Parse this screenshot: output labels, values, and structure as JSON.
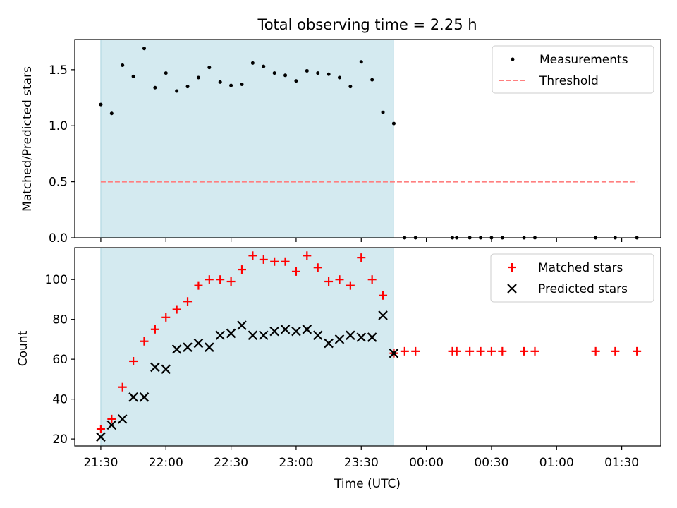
{
  "chart_data": [
    {
      "type": "scatter",
      "title": "Total observing time = 2.25 h",
      "xlabel": "",
      "ylabel": "Matched/Predicted stars",
      "ylim": [
        0,
        1.77
      ],
      "xlim": [
        "21:18",
        "01:48"
      ],
      "yticks": [
        "0.0",
        "0.5",
        "1.0",
        "1.5"
      ],
      "highlight_band": {
        "from": "21:30",
        "to": "23:45",
        "color": "#d4eaf0"
      },
      "legend_position": "top-right",
      "series": [
        {
          "name": "Measurements",
          "marker": "dot",
          "color": "#000000",
          "points": [
            [
              "21:30",
              1.19
            ],
            [
              "21:35",
              1.11
            ],
            [
              "21:40",
              1.54
            ],
            [
              "21:45",
              1.44
            ],
            [
              "21:50",
              1.69
            ],
            [
              "21:55",
              1.34
            ],
            [
              "22:00",
              1.47
            ],
            [
              "22:05",
              1.31
            ],
            [
              "22:10",
              1.35
            ],
            [
              "22:15",
              1.43
            ],
            [
              "22:20",
              1.52
            ],
            [
              "22:25",
              1.39
            ],
            [
              "22:30",
              1.36
            ],
            [
              "22:35",
              1.37
            ],
            [
              "22:40",
              1.56
            ],
            [
              "22:45",
              1.53
            ],
            [
              "22:50",
              1.47
            ],
            [
              "22:55",
              1.45
            ],
            [
              "23:00",
              1.4
            ],
            [
              "23:05",
              1.49
            ],
            [
              "23:10",
              1.47
            ],
            [
              "23:15",
              1.46
            ],
            [
              "23:20",
              1.43
            ],
            [
              "23:25",
              1.35
            ],
            [
              "23:30",
              1.57
            ],
            [
              "23:35",
              1.41
            ],
            [
              "23:40",
              1.12
            ],
            [
              "23:45",
              1.02
            ],
            [
              "23:50",
              0.0
            ],
            [
              "23:55",
              0.0
            ],
            [
              "00:12",
              0.0
            ],
            [
              "00:14",
              0.0
            ],
            [
              "00:20",
              0.0
            ],
            [
              "00:25",
              0.0
            ],
            [
              "00:30",
              0.0
            ],
            [
              "00:35",
              0.0
            ],
            [
              "00:45",
              0.0
            ],
            [
              "00:50",
              0.0
            ],
            [
              "01:18",
              0.0
            ],
            [
              "01:27",
              0.0
            ],
            [
              "01:37",
              0.0
            ]
          ]
        },
        {
          "name": "Threshold",
          "marker": "dashed-line",
          "color": "#ff7f7f",
          "points": [
            [
              "21:30",
              0.5
            ],
            [
              "01:37",
              0.5
            ]
          ]
        }
      ]
    },
    {
      "type": "scatter",
      "title": "",
      "xlabel": "Time (UTC)",
      "ylabel": "Count",
      "ylim": [
        16.5,
        116
      ],
      "xlim": [
        "21:18",
        "01:48"
      ],
      "yticks": [
        "20",
        "40",
        "60",
        "80",
        "100"
      ],
      "xticks": [
        "21:30",
        "22:00",
        "22:30",
        "23:00",
        "23:30",
        "00:00",
        "00:30",
        "01:00",
        "01:30"
      ],
      "highlight_band": {
        "from": "21:30",
        "to": "23:45",
        "color": "#d4eaf0"
      },
      "legend_position": "top-right",
      "series": [
        {
          "name": "Matched stars",
          "marker": "plus",
          "color": "#ff0000",
          "points": [
            [
              "21:30",
              25
            ],
            [
              "21:35",
              30
            ],
            [
              "21:40",
              46
            ],
            [
              "21:45",
              59
            ],
            [
              "21:50",
              69
            ],
            [
              "21:55",
              75
            ],
            [
              "22:00",
              81
            ],
            [
              "22:05",
              85
            ],
            [
              "22:10",
              89
            ],
            [
              "22:15",
              97
            ],
            [
              "22:20",
              100
            ],
            [
              "22:25",
              100
            ],
            [
              "22:30",
              99
            ],
            [
              "22:35",
              105
            ],
            [
              "22:40",
              112
            ],
            [
              "22:45",
              110
            ],
            [
              "22:50",
              109
            ],
            [
              "22:55",
              109
            ],
            [
              "23:00",
              104
            ],
            [
              "23:05",
              112
            ],
            [
              "23:10",
              106
            ],
            [
              "23:15",
              99
            ],
            [
              "23:20",
              100
            ],
            [
              "23:25",
              97
            ],
            [
              "23:30",
              111
            ],
            [
              "23:35",
              100
            ],
            [
              "23:40",
              92
            ],
            [
              "23:45",
              63
            ],
            [
              "23:50",
              64
            ],
            [
              "23:55",
              64
            ],
            [
              "00:12",
              64
            ],
            [
              "00:14",
              64
            ],
            [
              "00:20",
              64
            ],
            [
              "00:25",
              64
            ],
            [
              "00:30",
              64
            ],
            [
              "00:35",
              64
            ],
            [
              "00:45",
              64
            ],
            [
              "00:50",
              64
            ],
            [
              "01:18",
              64
            ],
            [
              "01:27",
              64
            ],
            [
              "01:37",
              64
            ]
          ]
        },
        {
          "name": "Predicted stars",
          "marker": "x",
          "color": "#000000",
          "points": [
            [
              "21:30",
              21
            ],
            [
              "21:35",
              27
            ],
            [
              "21:40",
              30
            ],
            [
              "21:45",
              41
            ],
            [
              "21:50",
              41
            ],
            [
              "21:55",
              56
            ],
            [
              "22:00",
              55
            ],
            [
              "22:05",
              65
            ],
            [
              "22:10",
              66
            ],
            [
              "22:15",
              68
            ],
            [
              "22:20",
              66
            ],
            [
              "22:25",
              72
            ],
            [
              "22:30",
              73
            ],
            [
              "22:35",
              77
            ],
            [
              "22:40",
              72
            ],
            [
              "22:45",
              72
            ],
            [
              "22:50",
              74
            ],
            [
              "22:55",
              75
            ],
            [
              "23:00",
              74
            ],
            [
              "23:05",
              75
            ],
            [
              "23:10",
              72
            ],
            [
              "23:15",
              68
            ],
            [
              "23:20",
              70
            ],
            [
              "23:25",
              72
            ],
            [
              "23:30",
              71
            ],
            [
              "23:35",
              71
            ],
            [
              "23:40",
              82
            ],
            [
              "23:45",
              63
            ]
          ]
        }
      ]
    }
  ]
}
